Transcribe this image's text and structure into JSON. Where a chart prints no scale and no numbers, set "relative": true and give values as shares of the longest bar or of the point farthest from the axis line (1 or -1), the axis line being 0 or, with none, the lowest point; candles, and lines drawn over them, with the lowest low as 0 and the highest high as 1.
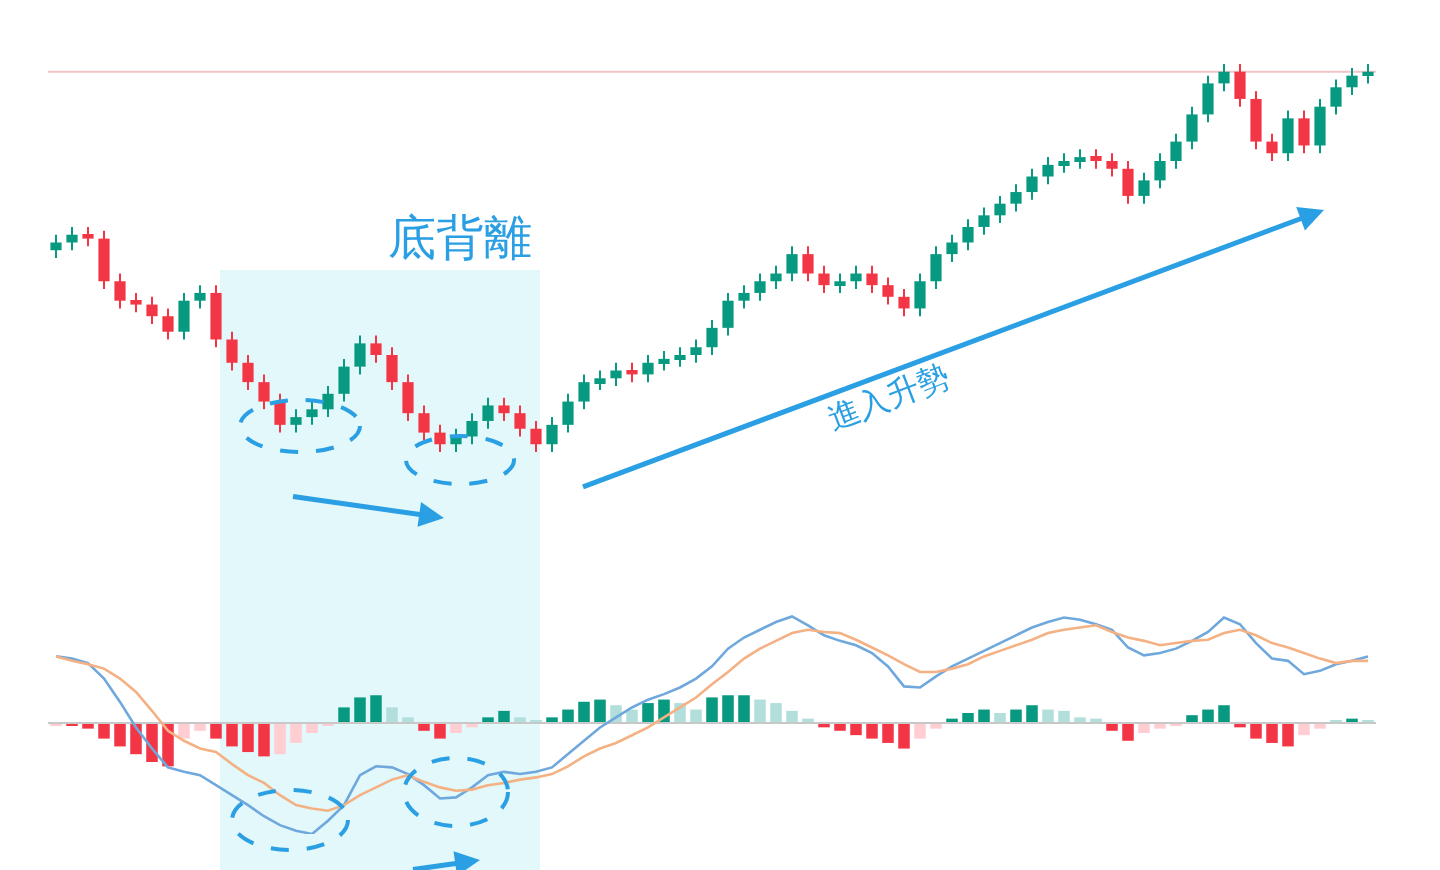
{
  "chart_data": [
    {
      "type": "candlestick",
      "relative": true,
      "categories": [
        null,
        null,
        null,
        null,
        null,
        null,
        null,
        null,
        null,
        null,
        null,
        null,
        null,
        null,
        null,
        null,
        null,
        null,
        null,
        null,
        null,
        null,
        null,
        null,
        null,
        null,
        null,
        null,
        null,
        null,
        null,
        null,
        null,
        null,
        null,
        null,
        null,
        null,
        null,
        null,
        null,
        null,
        null,
        null,
        null,
        null,
        null,
        null,
        null,
        null,
        null,
        null,
        null,
        null,
        null,
        null,
        null,
        null,
        null,
        null,
        null,
        null,
        null,
        null,
        null,
        null,
        null,
        null,
        null,
        null,
        null,
        null,
        null,
        null,
        null,
        null,
        null,
        null,
        null,
        null,
        null,
        null,
        null
      ],
      "ohlc": [
        [
          0.52,
          0.56,
          0.5,
          0.54
        ],
        [
          0.54,
          0.58,
          0.52,
          0.56
        ],
        [
          0.56,
          0.58,
          0.53,
          0.55
        ],
        [
          0.55,
          0.57,
          0.42,
          0.44
        ],
        [
          0.44,
          0.46,
          0.37,
          0.39
        ],
        [
          0.39,
          0.41,
          0.36,
          0.38
        ],
        [
          0.38,
          0.4,
          0.33,
          0.35
        ],
        [
          0.35,
          0.37,
          0.29,
          0.31
        ],
        [
          0.31,
          0.41,
          0.29,
          0.39
        ],
        [
          0.39,
          0.43,
          0.37,
          0.41
        ],
        [
          0.41,
          0.43,
          0.27,
          0.29
        ],
        [
          0.29,
          0.31,
          0.21,
          0.23
        ],
        [
          0.23,
          0.25,
          0.16,
          0.18
        ],
        [
          0.18,
          0.2,
          0.11,
          0.13
        ],
        [
          0.13,
          0.15,
          0.05,
          0.07
        ],
        [
          0.07,
          0.11,
          0.05,
          0.09
        ],
        [
          0.09,
          0.13,
          0.07,
          0.11
        ],
        [
          0.11,
          0.17,
          0.09,
          0.15
        ],
        [
          0.15,
          0.24,
          0.13,
          0.22
        ],
        [
          0.22,
          0.3,
          0.2,
          0.28
        ],
        [
          0.28,
          0.3,
          0.23,
          0.25
        ],
        [
          0.25,
          0.27,
          0.16,
          0.18
        ],
        [
          0.18,
          0.2,
          0.08,
          0.1
        ],
        [
          0.1,
          0.12,
          0.03,
          0.05
        ],
        [
          0.05,
          0.07,
          0.0,
          0.02
        ],
        [
          0.02,
          0.06,
          0.0,
          0.04
        ],
        [
          0.04,
          0.1,
          0.02,
          0.08
        ],
        [
          0.08,
          0.14,
          0.06,
          0.12
        ],
        [
          0.12,
          0.14,
          0.08,
          0.1
        ],
        [
          0.1,
          0.12,
          0.04,
          0.06
        ],
        [
          0.06,
          0.08,
          0.0,
          0.02
        ],
        [
          0.02,
          0.09,
          0.0,
          0.07
        ],
        [
          0.07,
          0.15,
          0.05,
          0.13
        ],
        [
          0.13,
          0.2,
          0.11,
          0.18
        ],
        [
          0.18,
          0.21,
          0.16,
          0.19
        ],
        [
          0.19,
          0.23,
          0.17,
          0.21
        ],
        [
          0.21,
          0.23,
          0.18,
          0.2
        ],
        [
          0.2,
          0.25,
          0.18,
          0.23
        ],
        [
          0.23,
          0.26,
          0.21,
          0.24
        ],
        [
          0.24,
          0.27,
          0.22,
          0.25
        ],
        [
          0.25,
          0.29,
          0.23,
          0.27
        ],
        [
          0.27,
          0.34,
          0.25,
          0.32
        ],
        [
          0.32,
          0.41,
          0.3,
          0.39
        ],
        [
          0.39,
          0.43,
          0.37,
          0.41
        ],
        [
          0.41,
          0.46,
          0.39,
          0.44
        ],
        [
          0.44,
          0.48,
          0.42,
          0.46
        ],
        [
          0.46,
          0.53,
          0.44,
          0.51
        ],
        [
          0.51,
          0.53,
          0.44,
          0.46
        ],
        [
          0.46,
          0.48,
          0.41,
          0.43
        ],
        [
          0.43,
          0.46,
          0.41,
          0.44
        ],
        [
          0.44,
          0.48,
          0.42,
          0.46
        ],
        [
          0.46,
          0.48,
          0.41,
          0.43
        ],
        [
          0.43,
          0.45,
          0.38,
          0.4
        ],
        [
          0.4,
          0.42,
          0.35,
          0.37
        ],
        [
          0.37,
          0.46,
          0.35,
          0.44
        ],
        [
          0.44,
          0.53,
          0.42,
          0.51
        ],
        [
          0.51,
          0.56,
          0.49,
          0.54
        ],
        [
          0.54,
          0.6,
          0.52,
          0.58
        ],
        [
          0.58,
          0.63,
          0.56,
          0.61
        ],
        [
          0.61,
          0.66,
          0.59,
          0.64
        ],
        [
          0.64,
          0.69,
          0.62,
          0.67
        ],
        [
          0.67,
          0.73,
          0.65,
          0.71
        ],
        [
          0.71,
          0.76,
          0.69,
          0.74
        ],
        [
          0.74,
          0.77,
          0.72,
          0.75
        ],
        [
          0.75,
          0.78,
          0.73,
          0.76
        ],
        [
          0.76,
          0.78,
          0.73,
          0.75
        ],
        [
          0.75,
          0.77,
          0.71,
          0.73
        ],
        [
          0.73,
          0.75,
          0.64,
          0.66
        ],
        [
          0.66,
          0.72,
          0.64,
          0.7
        ],
        [
          0.7,
          0.77,
          0.68,
          0.75
        ],
        [
          0.75,
          0.82,
          0.73,
          0.8
        ],
        [
          0.8,
          0.89,
          0.78,
          0.87
        ],
        [
          0.87,
          0.97,
          0.85,
          0.95
        ],
        [
          0.95,
          1.0,
          0.93,
          0.98
        ],
        [
          0.98,
          1.0,
          0.89,
          0.91
        ],
        [
          0.91,
          0.93,
          0.78,
          0.8
        ],
        [
          0.8,
          0.82,
          0.75,
          0.77
        ],
        [
          0.77,
          0.88,
          0.75,
          0.86
        ],
        [
          0.86,
          0.88,
          0.77,
          0.79
        ],
        [
          0.79,
          0.91,
          0.77,
          0.89
        ],
        [
          0.89,
          0.96,
          0.87,
          0.94
        ],
        [
          0.94,
          0.99,
          0.92,
          0.97
        ],
        [
          0.97,
          1.0,
          0.95,
          0.98
        ]
      ],
      "colors": [
        "#089981",
        "#089981",
        "#f23645",
        "#f23645",
        "#f23645",
        "#f23645",
        "#f23645",
        "#f23645",
        "#089981",
        "#089981",
        "#f23645",
        "#f23645",
        "#f23645",
        "#f23645",
        "#f23645",
        "#089981",
        "#089981",
        "#089981",
        "#089981",
        "#089981",
        "#f23645",
        "#f23645",
        "#f23645",
        "#f23645",
        "#f23645",
        "#089981",
        "#089981",
        "#089981",
        "#f23645",
        "#f23645",
        "#f23645",
        "#089981",
        "#089981",
        "#089981",
        "#089981",
        "#089981",
        "#f23645",
        "#089981",
        "#089981",
        "#089981",
        "#089981",
        "#089981",
        "#089981",
        "#089981",
        "#089981",
        "#089981",
        "#089981",
        "#f23645",
        "#f23645",
        "#089981",
        "#089981",
        "#f23645",
        "#f23645",
        "#f23645",
        "#089981",
        "#089981",
        "#089981",
        "#089981",
        "#089981",
        "#089981",
        "#089981",
        "#089981",
        "#089981",
        "#089981",
        "#089981",
        "#f23645",
        "#f23645",
        "#f23645",
        "#089981",
        "#089981",
        "#089981",
        "#089981",
        "#089981",
        "#089981",
        "#f23645",
        "#f23645",
        "#f23645",
        "#089981",
        "#f23645",
        "#089981",
        "#089981",
        "#089981",
        "#089981"
      ],
      "ref_lines": [
        {
          "axis": "y",
          "value": 0.98,
          "color": "#f2c4c7"
        }
      ],
      "annotations": [
        "底背離",
        "進入升勢"
      ]
    },
    {
      "type": "bar",
      "relative": true,
      "categories": [
        null,
        null,
        null,
        null,
        null,
        null,
        null,
        null,
        null,
        null,
        null,
        null,
        null,
        null,
        null,
        null,
        null,
        null,
        null,
        null,
        null,
        null,
        null,
        null,
        null,
        null,
        null,
        null,
        null,
        null,
        null,
        null,
        null,
        null,
        null,
        null,
        null,
        null,
        null,
        null,
        null,
        null,
        null,
        null,
        null,
        null,
        null,
        null,
        null,
        null,
        null,
        null,
        null,
        null,
        null,
        null,
        null,
        null,
        null,
        null,
        null,
        null,
        null,
        null,
        null,
        null,
        null,
        null,
        null,
        null,
        null,
        null,
        null,
        null,
        null,
        null,
        null,
        null,
        null,
        null,
        null,
        null,
        null
      ],
      "series": [
        {
          "type": "bar",
          "values": [
            -0.03,
            -0.05,
            -0.13,
            -0.36,
            -0.54,
            -0.72,
            -0.9,
            -1,
            -0.36,
            -0.18,
            -0.36,
            -0.54,
            -0.67,
            -0.77,
            -0.72,
            -0.46,
            -0.23,
            -0.05,
            0.36,
            0.59,
            0.64,
            0.36,
            0.13,
            -0.18,
            -0.36,
            -0.23,
            -0.1,
            0.13,
            0.28,
            0.13,
            0.05,
            0.13,
            0.31,
            0.49,
            0.54,
            0.41,
            0.31,
            0.46,
            0.54,
            0.46,
            0.31,
            0.59,
            0.64,
            0.64,
            0.54,
            0.46,
            0.28,
            0.1,
            -0.1,
            -0.18,
            -0.28,
            -0.36,
            -0.46,
            -0.59,
            -0.36,
            -0.13,
            0.1,
            0.23,
            0.31,
            0.23,
            0.31,
            0.41,
            0.31,
            0.28,
            0.13,
            0.1,
            -0.18,
            -0.41,
            -0.23,
            -0.13,
            -0.05,
            0.18,
            0.31,
            0.41,
            -0.1,
            -0.36,
            -0.46,
            -0.54,
            -0.28,
            -0.13,
            0.03,
            0.1,
            0.05
          ],
          "colors": [
            "#ffcdd2",
            "#f23645",
            "#f23645",
            "#f23645",
            "#f23645",
            "#f23645",
            "#f23645",
            "#f23645",
            "#ffcdd2",
            "#ffcdd2",
            "#f23645",
            "#f23645",
            "#f23645",
            "#f23645",
            "#ffcdd2",
            "#ffcdd2",
            "#ffcdd2",
            "#ffcdd2",
            "#089981",
            "#089981",
            "#089981",
            "#b2dfdb",
            "#b2dfdb",
            "#f23645",
            "#f23645",
            "#ffcdd2",
            "#ffcdd2",
            "#089981",
            "#089981",
            "#b2dfdb",
            "#b2dfdb",
            "#089981",
            "#089981",
            "#089981",
            "#089981",
            "#b2dfdb",
            "#b2dfdb",
            "#089981",
            "#089981",
            "#b2dfdb",
            "#b2dfdb",
            "#089981",
            "#089981",
            "#089981",
            "#b2dfdb",
            "#b2dfdb",
            "#b2dfdb",
            "#b2dfdb",
            "#f23645",
            "#f23645",
            "#f23645",
            "#f23645",
            "#f23645",
            "#f23645",
            "#ffcdd2",
            "#ffcdd2",
            "#089981",
            "#089981",
            "#089981",
            "#b2dfdb",
            "#089981",
            "#089981",
            "#b2dfdb",
            "#b2dfdb",
            "#b2dfdb",
            "#b2dfdb",
            "#f23645",
            "#f23645",
            "#ffcdd2",
            "#ffcdd2",
            "#ffcdd2",
            "#089981",
            "#089981",
            "#089981",
            "#f23645",
            "#f23645",
            "#f23645",
            "#f23645",
            "#ffcdd2",
            "#ffcdd2",
            "#b2dfdb",
            "#089981",
            "#b2dfdb"
          ]
        }
      ]
    },
    {
      "type": "line",
      "relative": true,
      "categories": [
        null,
        null,
        null,
        null,
        null,
        null,
        null,
        null,
        null,
        null,
        null,
        null,
        null,
        null,
        null,
        null,
        null,
        null,
        null,
        null,
        null,
        null,
        null,
        null,
        null,
        null,
        null,
        null,
        null,
        null,
        null,
        null,
        null,
        null,
        null,
        null,
        null,
        null,
        null,
        null,
        null,
        null,
        null,
        null,
        null,
        null,
        null,
        null,
        null,
        null,
        null,
        null,
        null,
        null,
        null,
        null,
        null,
        null,
        null,
        null,
        null,
        null,
        null,
        null,
        null,
        null,
        null,
        null,
        null,
        null,
        null,
        null,
        null,
        null,
        null,
        null,
        null,
        null,
        null,
        null,
        null,
        null,
        null
      ],
      "series": [
        {
          "type": "line",
          "color": "#6fa8dc",
          "values": [
            0.6,
            0.58,
            0.54,
            0.4,
            0.19,
            -0.04,
            -0.23,
            -0.4,
            -0.44,
            -0.47,
            -0.56,
            -0.65,
            -0.74,
            -0.84,
            -0.92,
            -0.97,
            -1.0,
            -0.88,
            -0.74,
            -0.47,
            -0.39,
            -0.4,
            -0.46,
            -0.56,
            -0.68,
            -0.67,
            -0.58,
            -0.47,
            -0.44,
            -0.46,
            -0.44,
            -0.4,
            -0.28,
            -0.16,
            -0.04,
            0.05,
            0.14,
            0.21,
            0.26,
            0.32,
            0.4,
            0.51,
            0.67,
            0.77,
            0.84,
            0.91,
            0.96,
            0.88,
            0.79,
            0.74,
            0.7,
            0.63,
            0.51,
            0.33,
            0.32,
            0.42,
            0.51,
            0.58,
            0.65,
            0.72,
            0.79,
            0.86,
            0.91,
            0.95,
            0.93,
            0.89,
            0.84,
            0.68,
            0.61,
            0.63,
            0.67,
            0.74,
            0.82,
            0.95,
            0.89,
            0.72,
            0.58,
            0.56,
            0.44,
            0.47,
            0.53,
            0.56,
            0.6
          ]
        },
        {
          "type": "line",
          "color": "#f4b183",
          "values": [
            0.6,
            0.56,
            0.53,
            0.49,
            0.4,
            0.28,
            0.11,
            -0.07,
            -0.16,
            -0.23,
            -0.26,
            -0.37,
            -0.47,
            -0.54,
            -0.65,
            -0.74,
            -0.77,
            -0.79,
            -0.74,
            -0.65,
            -0.58,
            -0.51,
            -0.47,
            -0.53,
            -0.58,
            -0.61,
            -0.6,
            -0.56,
            -0.54,
            -0.51,
            -0.49,
            -0.46,
            -0.39,
            -0.3,
            -0.23,
            -0.18,
            -0.11,
            -0.04,
            0.05,
            0.14,
            0.23,
            0.35,
            0.46,
            0.58,
            0.67,
            0.74,
            0.81,
            0.84,
            0.82,
            0.81,
            0.75,
            0.68,
            0.61,
            0.53,
            0.46,
            0.46,
            0.49,
            0.53,
            0.6,
            0.65,
            0.7,
            0.75,
            0.81,
            0.84,
            0.86,
            0.88,
            0.82,
            0.77,
            0.74,
            0.7,
            0.72,
            0.74,
            0.75,
            0.81,
            0.84,
            0.79,
            0.72,
            0.68,
            0.63,
            0.58,
            0.54,
            0.56,
            0.56
          ]
        }
      ]
    }
  ]
}
